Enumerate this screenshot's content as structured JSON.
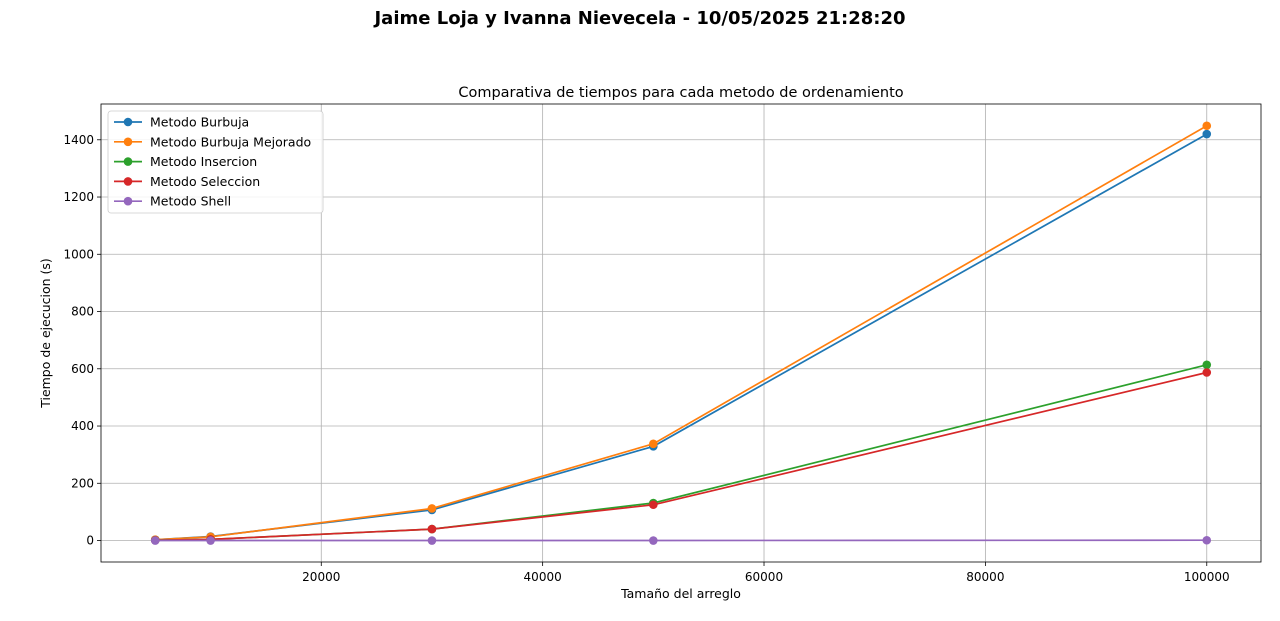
{
  "suptitle": "Jaime Loja y Ivanna Nievecela - 10/05/2025 21:28:20",
  "chart_data": {
    "type": "line",
    "title": "Comparativa de tiempos para cada metodo de ordenamiento",
    "xlabel": "Tamaño del arreglo",
    "ylabel": "Tiempo de ejecucion (s)",
    "xlim": [
      100,
      104900
    ],
    "ylim": [
      -75,
      1525
    ],
    "xticks": [
      20000,
      40000,
      60000,
      80000,
      100000
    ],
    "yticks": [
      0,
      200,
      400,
      600,
      800,
      1000,
      1200,
      1400
    ],
    "grid": true,
    "legend_position": "top-left",
    "x": [
      5000,
      10000,
      30000,
      50000,
      100000
    ],
    "series": [
      {
        "name": "Metodo Burbuja",
        "color": "#1f77b4",
        "values": [
          3,
          14,
          107,
          329,
          1420
        ]
      },
      {
        "name": "Metodo Burbuja Mejorado",
        "color": "#ff7f0e",
        "values": [
          3,
          13,
          112,
          338,
          1449
        ]
      },
      {
        "name": "Metodo Insercion",
        "color": "#2ca02c",
        "values": [
          1,
          4,
          40,
          131,
          614
        ]
      },
      {
        "name": "Metodo Seleccion",
        "color": "#d62728",
        "values": [
          1,
          4,
          40,
          125,
          587
        ]
      },
      {
        "name": "Metodo Shell",
        "color": "#9467bd",
        "values": [
          0,
          0,
          0,
          0,
          1
        ]
      }
    ]
  }
}
